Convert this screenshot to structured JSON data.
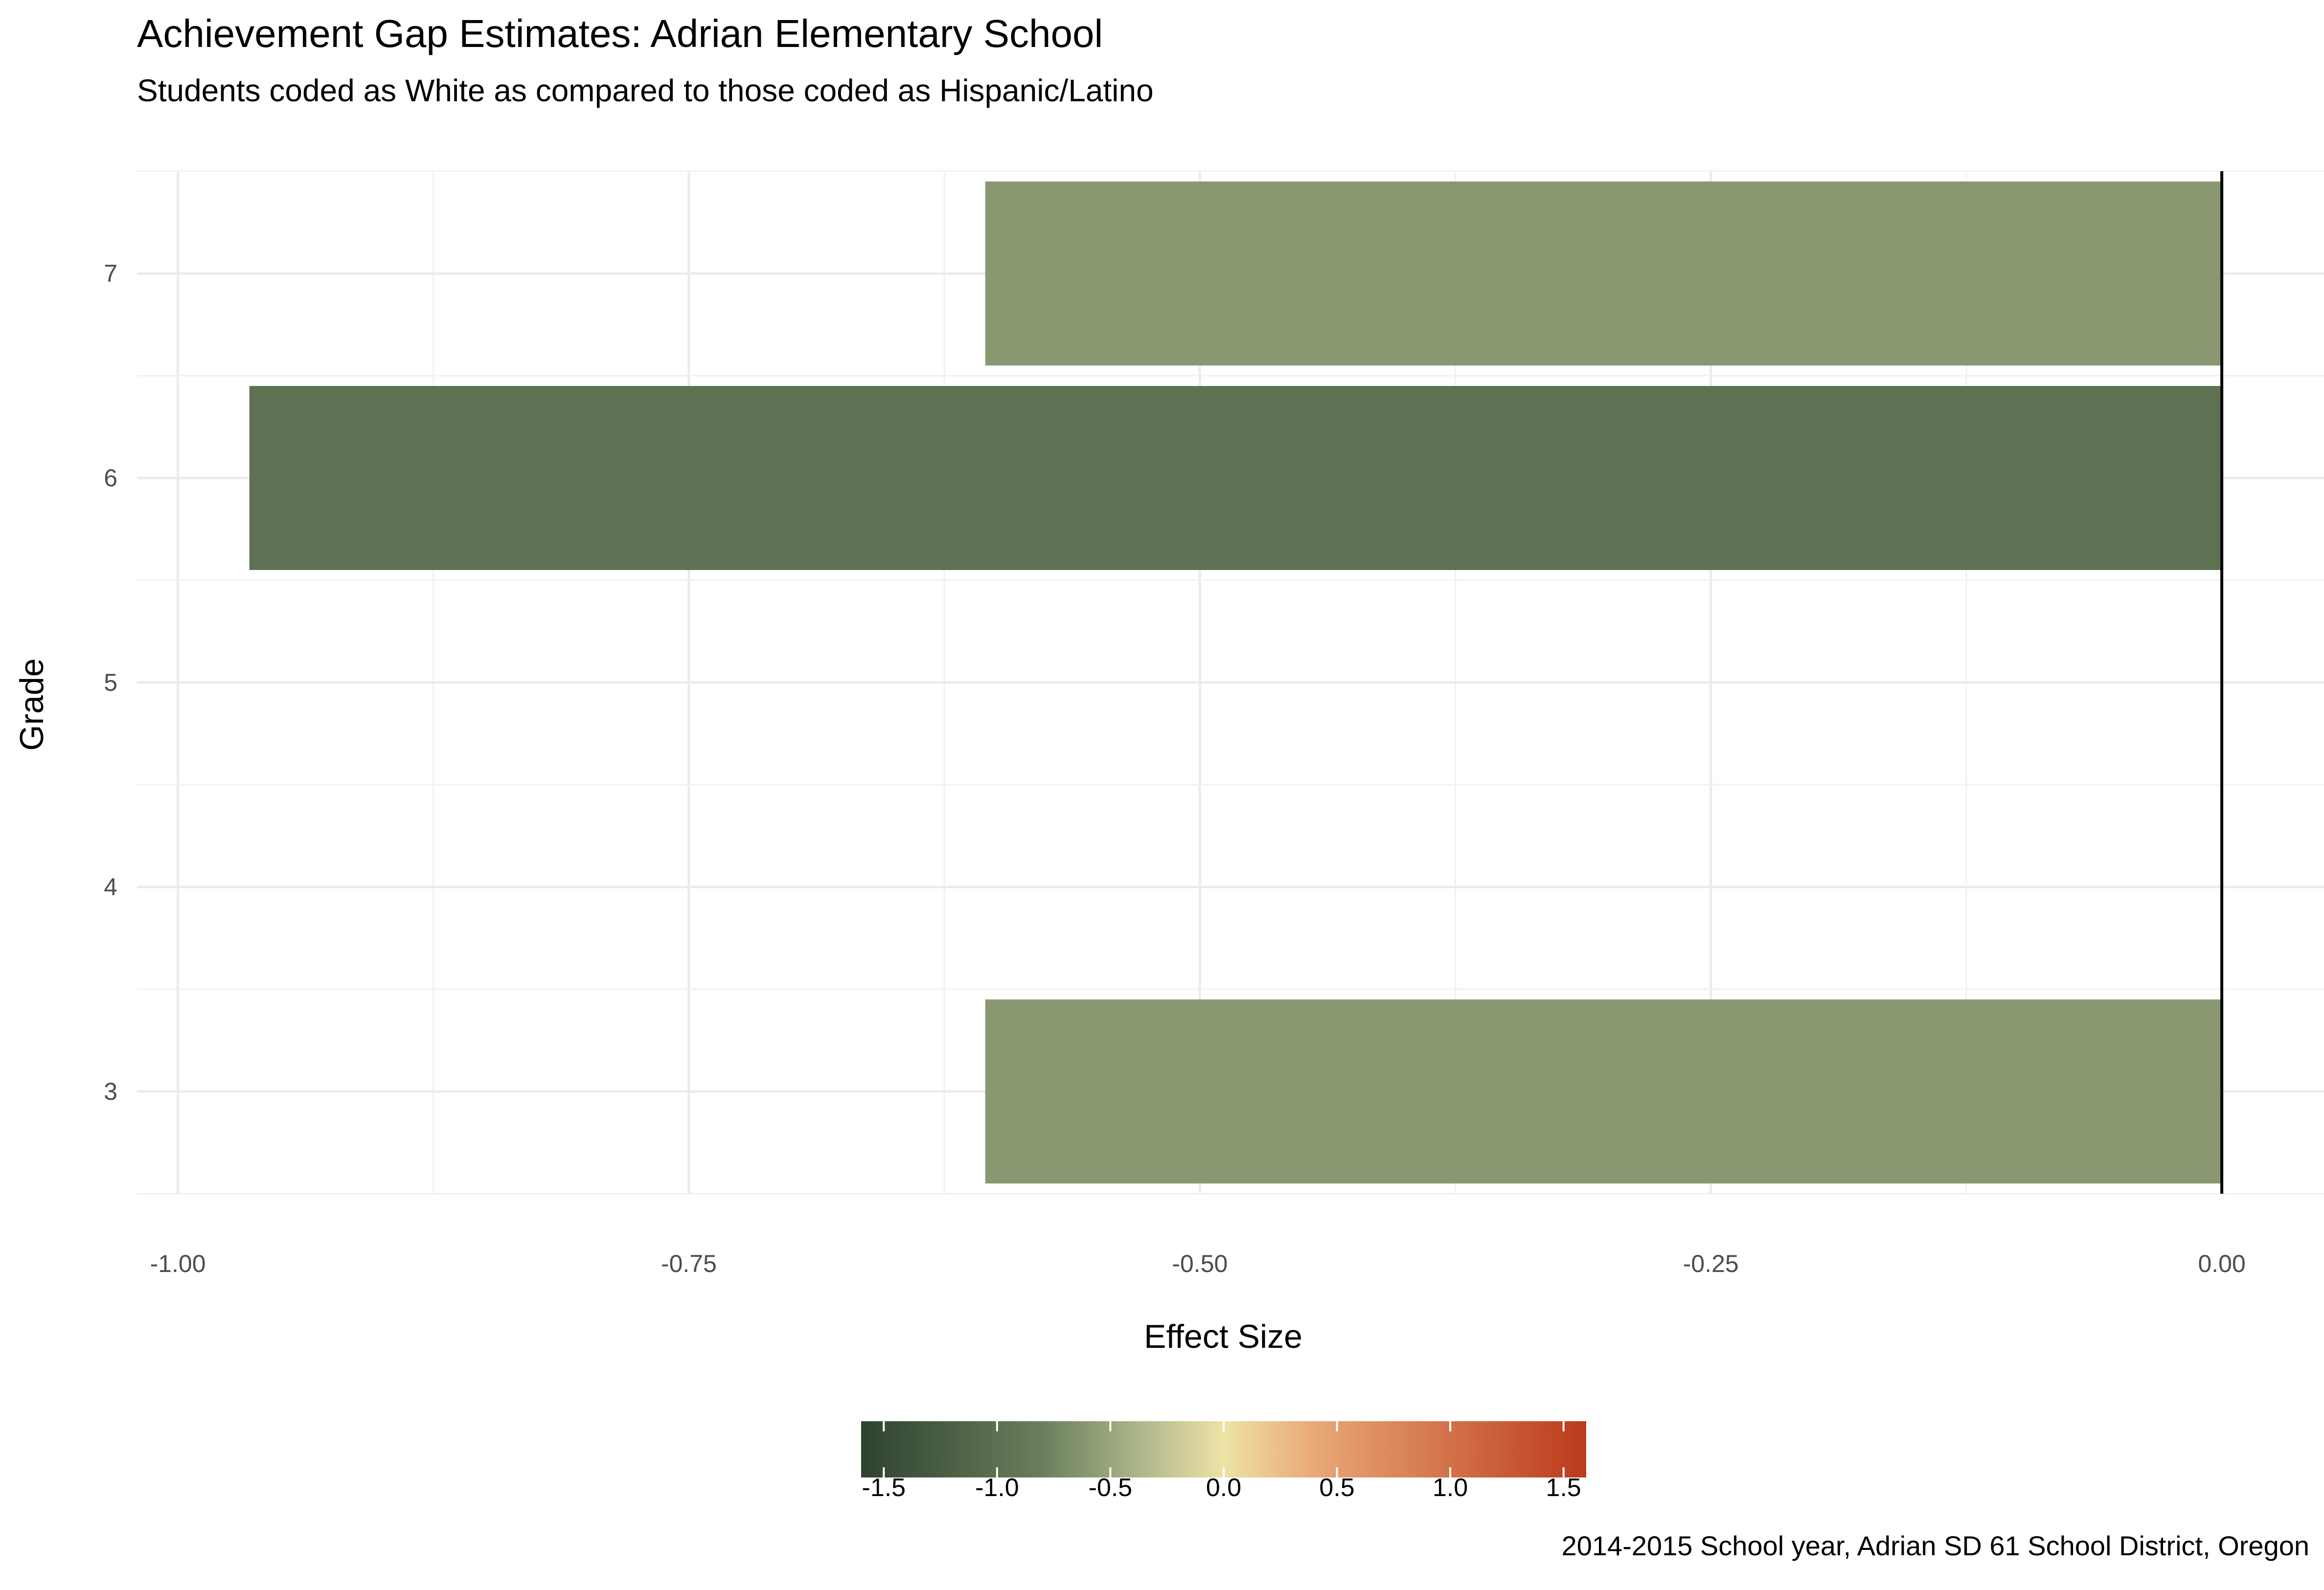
{
  "chart_data": {
    "type": "bar",
    "orientation": "horizontal",
    "title": "Achievement Gap Estimates: Adrian Elementary School",
    "subtitle": "Students coded as White as compared to those coded as Hispanic/Latino",
    "caption": "2014-2015 School year, Adrian SD 61 School District, Oregon",
    "xlabel": "Effect Size",
    "ylabel": "Grade",
    "categories": [
      "3",
      "4",
      "5",
      "6",
      "7"
    ],
    "values": [
      -0.605,
      null,
      null,
      -0.965,
      -0.605
    ],
    "xlim": [
      -1.02,
      0.05
    ],
    "x_ticks": [
      -1.0,
      -0.75,
      -0.5,
      -0.25,
      0.0
    ],
    "x_tick_labels": [
      "-1.00",
      "-0.75",
      "-0.50",
      "-0.25",
      "0.00"
    ],
    "grid": true,
    "reference_line_x": 0.0,
    "color_scale": {
      "limits": [
        -1.6,
        1.6
      ],
      "ticks": [
        -1.5,
        -1.0,
        -0.5,
        0.0,
        0.5,
        1.0,
        1.5
      ],
      "tick_labels": [
        "-1.5",
        "-1.0",
        "-0.5",
        "0.0",
        "0.5",
        "1.0",
        "1.5"
      ],
      "stops": [
        {
          "value": -1.6,
          "color": "#2e4230"
        },
        {
          "value": -0.8,
          "color": "#6b7e5c"
        },
        {
          "value": -0.4,
          "color": "#a8b388"
        },
        {
          "value": 0.0,
          "color": "#ede3a6"
        },
        {
          "value": 0.4,
          "color": "#e9a877"
        },
        {
          "value": 1.6,
          "color": "#bb3a1c"
        }
      ],
      "placement": "bottom"
    }
  }
}
